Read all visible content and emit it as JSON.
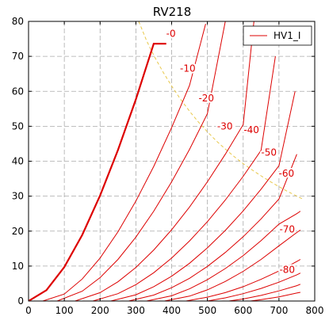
{
  "chart_data": {
    "type": "line",
    "title": "RV218",
    "xlabel": "",
    "ylabel": "",
    "xlim": [
      0,
      800
    ],
    "ylim": [
      0,
      80
    ],
    "x_ticks": [
      0,
      100,
      200,
      300,
      400,
      500,
      600,
      700,
      800
    ],
    "y_ticks": [
      0,
      10,
      20,
      30,
      40,
      50,
      60,
      70,
      80
    ],
    "grid": true,
    "legend": {
      "position": "top-right",
      "entries": [
        "HV1_I"
      ]
    },
    "colors": {
      "curves": "#dd0000",
      "dissipation": "#e8c84a",
      "grid": "#aaaaaa",
      "axis": "#000000"
    },
    "series": [
      {
        "label": "-0",
        "x": [
          0,
          50,
          100,
          150,
          200,
          250,
          300,
          350,
          385
        ],
        "y": [
          0,
          3.1,
          9.7,
          18.9,
          30.2,
          43.2,
          57.7,
          73.6,
          73.6
        ],
        "bold": true,
        "label_at": [
          398,
          76.5
        ]
      },
      {
        "label": "-10",
        "x": [
          40,
          100,
          150,
          200,
          250,
          300,
          350,
          400,
          450,
          495
        ],
        "y": [
          0,
          2.0,
          6.3,
          12.3,
          19.8,
          28.6,
          38.5,
          49.6,
          61.7,
          79.3
        ],
        "label_at": [
          445,
          66.5
        ]
      },
      {
        "label": "-20",
        "x": [
          80,
          150,
          200,
          250,
          300,
          350,
          400,
          450,
          500,
          550
        ],
        "y": [
          0,
          2.8,
          6.7,
          11.9,
          18.3,
          25.7,
          34.1,
          43.4,
          53.6,
          80.0
        ],
        "label_at": [
          497,
          58.0
        ]
      },
      {
        "label": "-30",
        "x": [
          130,
          200,
          250,
          300,
          350,
          400,
          450,
          500,
          550,
          600,
          630
        ],
        "y": [
          0,
          2.4,
          5.5,
          9.6,
          14.6,
          20.4,
          26.9,
          34.1,
          42.0,
          50.5,
          80.0
        ],
        "label_at": [
          549,
          50.0
        ]
      },
      {
        "label": "-40",
        "x": [
          180,
          250,
          300,
          350,
          400,
          450,
          500,
          550,
          600,
          650,
          690
        ],
        "y": [
          0,
          2.1,
          4.7,
          8.1,
          12.3,
          17.2,
          22.7,
          28.9,
          35.7,
          43.1,
          70.0
        ],
        "label_at": [
          623,
          49.0
        ]
      },
      {
        "label": "-50",
        "x": [
          230,
          300,
          350,
          400,
          450,
          500,
          550,
          600,
          650,
          700,
          745
        ],
        "y": [
          0,
          1.8,
          4.1,
          7.1,
          10.8,
          15.2,
          20.2,
          25.8,
          32.0,
          38.7,
          60.0
        ],
        "label_at": [
          672,
          42.5
        ]
      },
      {
        "label": "-60",
        "x": [
          280,
          350,
          400,
          450,
          500,
          550,
          600,
          650,
          700,
          750
        ],
        "y": [
          0,
          1.7,
          3.8,
          6.5,
          9.9,
          13.9,
          18.4,
          23.5,
          29.2,
          42.0
        ],
        "label_at": [
          721,
          36.5
        ]
      },
      {
        "label": "-70",
        "x": [
          330,
          400,
          450,
          500,
          550,
          600,
          650,
          700,
          750,
          760
        ],
        "y": [
          0,
          1.5,
          3.5,
          6.1,
          9.3,
          13.0,
          17.3,
          22.0,
          25.0,
          25.7
        ],
        "label_at": [
          723,
          20.5
        ]
      },
      {
        "label": "-80",
        "x": [
          380,
          450,
          500,
          550,
          600,
          650,
          700,
          750,
          760
        ],
        "y": [
          0,
          1.4,
          3.2,
          5.6,
          8.5,
          11.9,
          15.8,
          19.6,
          20.3
        ],
        "label_at": [
          723,
          9.0
        ]
      },
      {
        "label": "",
        "x": [
          440,
          500,
          550,
          600,
          650,
          700,
          750,
          760
        ],
        "y": [
          0,
          1.1,
          2.4,
          4.1,
          6.2,
          8.6,
          11.3,
          11.9
        ],
        "label_at": null
      },
      {
        "label": "",
        "x": [
          500,
          550,
          600,
          650,
          700,
          750,
          760
        ],
        "y": [
          0,
          0.9,
          2.1,
          3.6,
          5.4,
          7.5,
          8.0
        ],
        "label_at": null
      },
      {
        "label": "",
        "x": [
          560,
          600,
          650,
          700,
          750,
          760
        ],
        "y": [
          0,
          0.6,
          1.6,
          2.9,
          4.4,
          4.8
        ],
        "label_at": null
      },
      {
        "label": "",
        "x": [
          620,
          650,
          700,
          750,
          760
        ],
        "y": [
          0,
          0.4,
          1.2,
          2.3,
          2.5
        ],
        "label_at": null
      }
    ],
    "dissipation": {
      "x": [
        308,
        330,
        350,
        375,
        400,
        425,
        450,
        475,
        500,
        525,
        550,
        575,
        600,
        625,
        650,
        675,
        700,
        725,
        750,
        770
      ],
      "y": [
        80,
        74.5,
        70.3,
        65.7,
        61.5,
        57.7,
        54.3,
        51.2,
        48.4,
        45.8,
        43.5,
        41.3,
        39.3,
        37.5,
        35.8,
        34.2,
        32.7,
        31.3,
        30.0,
        29.0
      ]
    }
  }
}
